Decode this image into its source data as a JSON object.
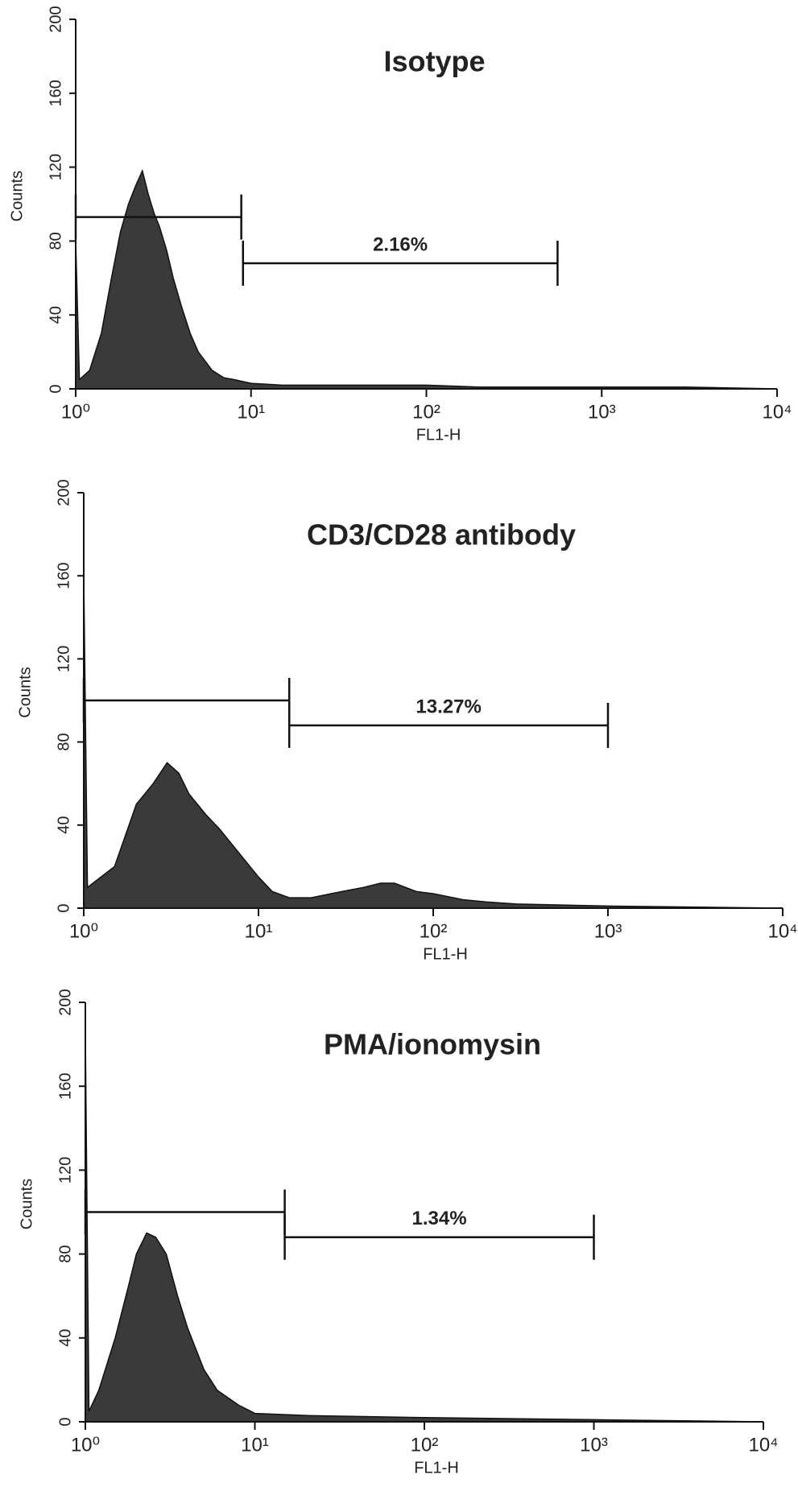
{
  "chart_data": [
    {
      "type": "histogram-area",
      "title": "Isotype",
      "x_label": "FL1-H",
      "y_label": "Counts",
      "xscale": "log",
      "xlim": [
        1,
        10000
      ],
      "ylim": [
        0,
        200
      ],
      "xticks": [
        {
          "value": 1,
          "label": "10⁰"
        },
        {
          "value": 10,
          "label": "10¹"
        },
        {
          "value": 100,
          "label": "10²"
        },
        {
          "value": 1000,
          "label": "10³"
        },
        {
          "value": 10000,
          "label": "10⁴"
        }
      ],
      "yticks": [
        0,
        40,
        80,
        120,
        160,
        200
      ],
      "series": [
        {
          "color": "#3a3a3a",
          "x": [
            1,
            1.05,
            1.2,
            1.4,
            1.6,
            1.8,
            2.0,
            2.2,
            2.4,
            2.6,
            2.8,
            3.0,
            3.3,
            3.6,
            4.0,
            4.5,
            5,
            6,
            7,
            8,
            10,
            15,
            20,
            30,
            50,
            100,
            200,
            500,
            1000,
            3000,
            10000
          ],
          "values": [
            80,
            5,
            10,
            30,
            60,
            85,
            100,
            110,
            118,
            105,
            95,
            88,
            75,
            60,
            45,
            30,
            20,
            10,
            6,
            5,
            3,
            2,
            2,
            2,
            2,
            2,
            1,
            1,
            1,
            1,
            0
          ]
        }
      ],
      "gates": [
        {
          "start": 1,
          "end": 8.8,
          "y": 93
        },
        {
          "start": 9,
          "end": 560,
          "y": 68,
          "label": "2.16%"
        }
      ]
    },
    {
      "type": "histogram-area",
      "title": "CD3/CD28 antibody",
      "x_label": "FL1-H",
      "y_label": "Counts",
      "xscale": "log",
      "xlim": [
        1,
        10000
      ],
      "ylim": [
        0,
        200
      ],
      "xticks": [
        {
          "value": 1,
          "label": "10⁰"
        },
        {
          "value": 10,
          "label": "10¹"
        },
        {
          "value": 100,
          "label": "10²"
        },
        {
          "value": 1000,
          "label": "10³"
        },
        {
          "value": 10000,
          "label": "10⁴"
        }
      ],
      "yticks": [
        0,
        40,
        80,
        120,
        160,
        200
      ],
      "series": [
        {
          "color": "#3a3a3a",
          "x": [
            1,
            1.05,
            1.5,
            2,
            2.5,
            3,
            3.5,
            4,
            5,
            6,
            8,
            10,
            12,
            15,
            20,
            30,
            40,
            50,
            60,
            80,
            100,
            150,
            200,
            300,
            1000,
            10000
          ],
          "values": [
            160,
            10,
            20,
            50,
            60,
            70,
            65,
            55,
            45,
            38,
            25,
            15,
            8,
            5,
            5,
            8,
            10,
            12,
            12,
            8,
            7,
            4,
            3,
            2,
            1,
            0
          ]
        }
      ],
      "gates": [
        {
          "start": 1,
          "end": 15,
          "y": 100
        },
        {
          "start": 15,
          "end": 1000,
          "y": 88,
          "label": "13.27%"
        }
      ]
    },
    {
      "type": "histogram-area",
      "title": "PMA/ionomysin",
      "x_label": "FL1-H",
      "y_label": "Counts",
      "xscale": "log",
      "xlim": [
        1,
        10000
      ],
      "ylim": [
        0,
        200
      ],
      "xticks": [
        {
          "value": 1,
          "label": "10⁰"
        },
        {
          "value": 10,
          "label": "10¹"
        },
        {
          "value": 100,
          "label": "10²"
        },
        {
          "value": 1000,
          "label": "10³"
        },
        {
          "value": 10000,
          "label": "10⁴"
        }
      ],
      "yticks": [
        0,
        40,
        80,
        120,
        160,
        200
      ],
      "series": [
        {
          "color": "#3a3a3a",
          "x": [
            1,
            1.05,
            1.2,
            1.5,
            1.8,
            2,
            2.3,
            2.6,
            3,
            3.5,
            4,
            5,
            6,
            8,
            10,
            20,
            100,
            1000,
            10000
          ],
          "values": [
            185,
            5,
            15,
            40,
            65,
            80,
            90,
            88,
            80,
            60,
            45,
            25,
            15,
            8,
            4,
            3,
            2,
            1,
            0
          ]
        }
      ],
      "gates": [
        {
          "start": 1,
          "end": 15,
          "y": 100
        },
        {
          "start": 15,
          "end": 1000,
          "y": 88,
          "label": "1.34%"
        }
      ]
    }
  ]
}
